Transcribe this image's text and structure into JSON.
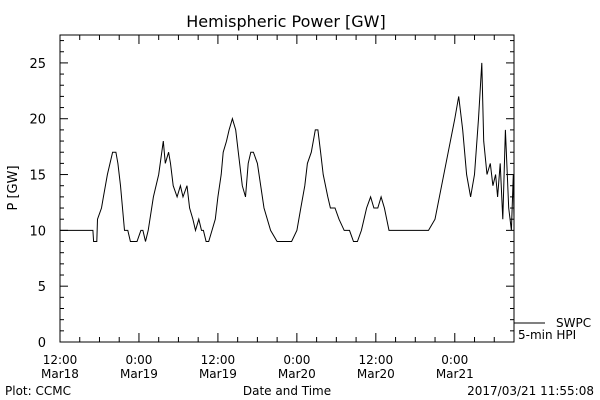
{
  "chart_data": {
    "type": "line",
    "title": "Hemispheric Power [GW]",
    "ylabel": "P [GW]",
    "xlabel": "Date and Time",
    "ylim": [
      0,
      27.5
    ],
    "yticks": [
      0,
      5,
      10,
      15,
      20,
      25
    ],
    "xlim_hours": [
      0,
      69
    ],
    "xtick_hours": [
      0,
      12,
      24,
      36,
      48,
      60
    ],
    "xtick_labels": [
      [
        "12:00",
        "Mar18"
      ],
      [
        "0:00",
        "Mar19"
      ],
      [
        "12:00",
        "Mar19"
      ],
      [
        "0:00",
        "Mar20"
      ],
      [
        "12:00",
        "Mar20"
      ],
      [
        "0:00",
        "Mar21"
      ]
    ],
    "grid": false,
    "legend_position": "bottom-right outside",
    "series": [
      {
        "name": "SWPC",
        "x_hours": [
          0,
          5,
          5.1,
          5.6,
          5.7,
          6.3,
          6.6,
          7.2,
          7.6,
          8,
          8.5,
          8.8,
          9.2,
          9.5,
          9.8,
          10.3,
          10.7,
          11.2,
          11.7,
          12.3,
          12.6,
          13,
          13.4,
          14.2,
          15,
          15.7,
          16,
          16.5,
          16.8,
          17.2,
          17.8,
          18.3,
          18.7,
          19.3,
          19.7,
          20.2,
          20.6,
          21.1,
          21.5,
          21.8,
          22.2,
          22.6,
          23.1,
          23.6,
          24,
          24.5,
          24.8,
          25.3,
          25.7,
          26.2,
          26.7,
          27.1,
          27.7,
          28.2,
          28.6,
          29,
          29.4,
          30,
          31,
          32,
          33,
          34,
          34.5,
          35.2,
          36,
          36.6,
          37.2,
          37.6,
          38.2,
          38.8,
          39.2,
          39.6,
          40,
          40.7,
          41.1,
          41.8,
          42.4,
          43.2,
          44,
          44.6,
          45.2,
          45.8,
          46.2,
          46.6,
          47.2,
          47.7,
          48.3,
          48.8,
          49.3,
          50,
          51,
          52,
          53,
          54,
          55,
          56,
          57,
          58,
          59,
          60,
          60.6,
          61.2,
          61.8,
          62.4,
          63,
          63.6,
          64.1,
          64.4,
          64.9,
          65.4,
          65.8,
          66.2,
          66.5,
          66.9,
          67.3,
          67.7,
          68.2,
          68.6,
          68.9,
          69
        ],
        "values": [
          10,
          10,
          9,
          9,
          11,
          12,
          13,
          15,
          16,
          17,
          17,
          16,
          14,
          12,
          10,
          10,
          9,
          9,
          9,
          10,
          10,
          9,
          10,
          13,
          15,
          18,
          16,
          17,
          16,
          14,
          13,
          14,
          13,
          14,
          12,
          11,
          10,
          11,
          10,
          10,
          9,
          9,
          10,
          11,
          13,
          15,
          17,
          18,
          19,
          20,
          19,
          17,
          14,
          13,
          16,
          17,
          17,
          16,
          12,
          10,
          9,
          9,
          9,
          9,
          10,
          12,
          14,
          16,
          17,
          19,
          19,
          17,
          15,
          13,
          12,
          12,
          11,
          10,
          10,
          9,
          9,
          10,
          11,
          12,
          13,
          12,
          12,
          13,
          12,
          10,
          10,
          10,
          10,
          10,
          10,
          10,
          11,
          14,
          17,
          20,
          22,
          19,
          15,
          13,
          15,
          20,
          25,
          18,
          15,
          16,
          14,
          15,
          13,
          16,
          11,
          19,
          12,
          10,
          15,
          11
        ]
      }
    ]
  },
  "legend": {
    "line1": "SWPC",
    "line2": "5-min HPI"
  },
  "footer": {
    "plot_credit": "Plot: CCMC",
    "timestamp": "2017/03/21 11:55:08"
  }
}
